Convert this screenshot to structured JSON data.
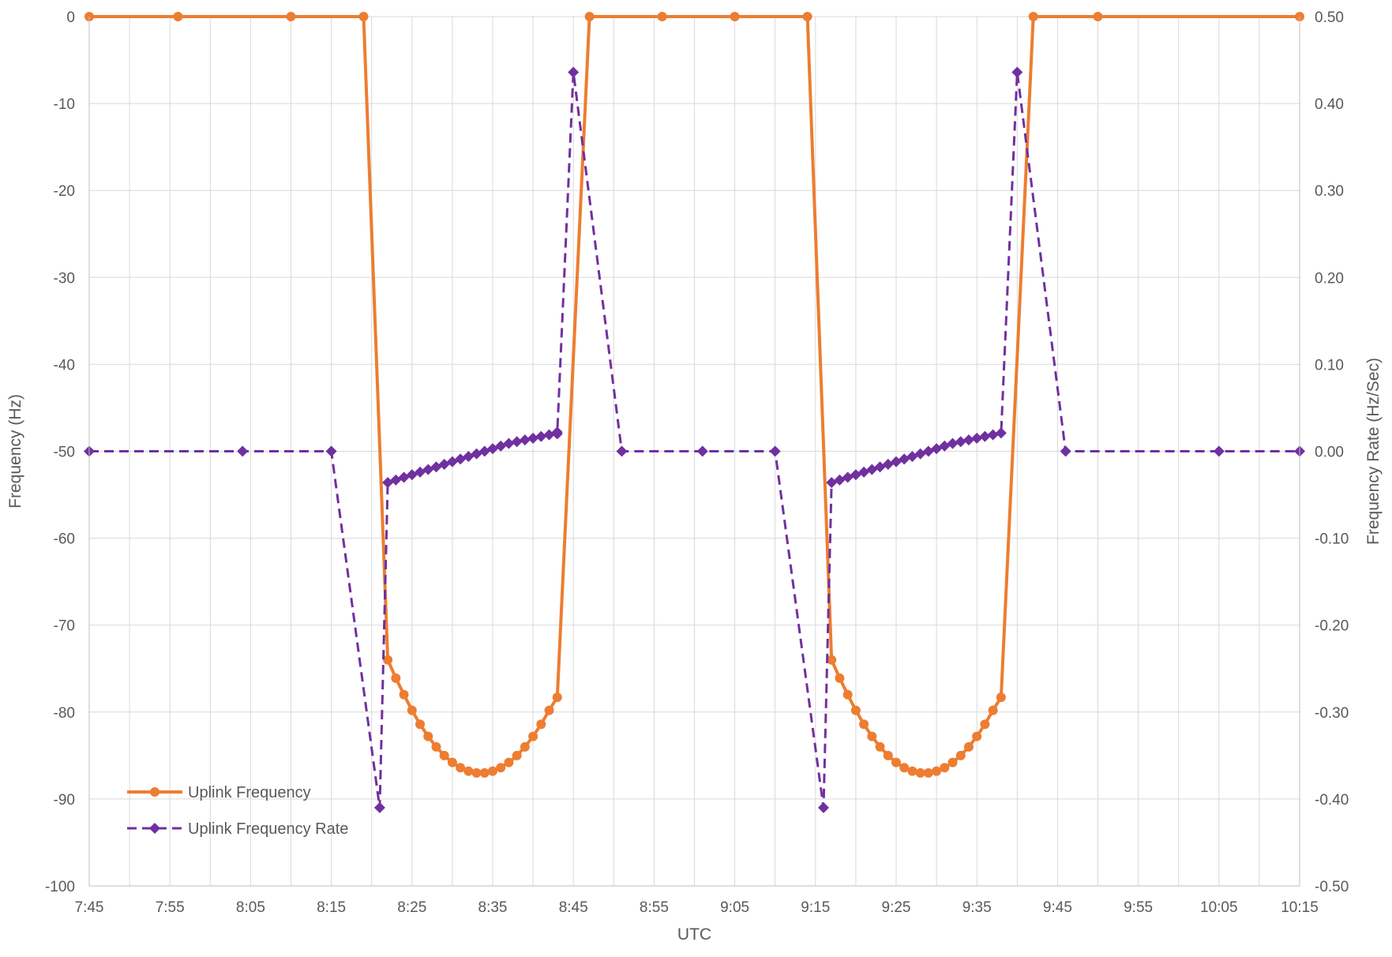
{
  "chart_data": {
    "type": "line",
    "xlabel": "UTC",
    "ylabel_left": "Frequency (Hz)",
    "ylabel_right": "Frequency Rate (Hz/Sec)",
    "xlim": [
      "7:45",
      "10:15"
    ],
    "ylim_left": [
      -100,
      0
    ],
    "ylim_right": [
      -0.5,
      0.5
    ],
    "x_ticks": [
      "7:45",
      "7:55",
      "8:05",
      "8:15",
      "8:25",
      "8:35",
      "8:45",
      "8:55",
      "9:05",
      "9:15",
      "9:25",
      "9:35",
      "9:45",
      "9:55",
      "10:05",
      "10:15"
    ],
    "y_left_ticks": [
      "0",
      "-10",
      "-20",
      "-30",
      "-40",
      "-50",
      "-60",
      "-70",
      "-80",
      "-90",
      "-100"
    ],
    "y_right_ticks": [
      "0.50",
      "0.40",
      "0.30",
      "0.20",
      "0.10",
      "0.00",
      "-0.10",
      "-0.20",
      "-0.30",
      "-0.40",
      "-0.50"
    ],
    "grid": "vertical and horizontal",
    "legend_position": "bottom-left",
    "series": [
      {
        "name": "Uplink Frequency",
        "axis": "left",
        "color": "#ED7D31",
        "line_style": "solid",
        "marker": "circle",
        "points": [
          [
            "7:45",
            0
          ],
          [
            "7:56",
            0
          ],
          [
            "8:10",
            0
          ],
          [
            "8:19",
            0
          ],
          [
            "8:22",
            -74
          ],
          [
            "8:23",
            -76.1
          ],
          [
            "8:24",
            -78
          ],
          [
            "8:25",
            -79.8
          ],
          [
            "8:26",
            -81.4
          ],
          [
            "8:27",
            -82.8
          ],
          [
            "8:28",
            -84
          ],
          [
            "8:29",
            -85
          ],
          [
            "8:30",
            -85.8
          ],
          [
            "8:31",
            -86.4
          ],
          [
            "8:32",
            -86.8
          ],
          [
            "8:33",
            -87
          ],
          [
            "8:34",
            -87
          ],
          [
            "8:35",
            -86.8
          ],
          [
            "8:36",
            -86.4
          ],
          [
            "8:37",
            -85.8
          ],
          [
            "8:38",
            -85
          ],
          [
            "8:39",
            -84
          ],
          [
            "8:40",
            -82.8
          ],
          [
            "8:41",
            -81.4
          ],
          [
            "8:42",
            -79.8
          ],
          [
            "8:43",
            -78.3
          ],
          [
            "8:47",
            0
          ],
          [
            "8:56",
            0
          ],
          [
            "9:05",
            0
          ],
          [
            "9:14",
            0
          ],
          [
            "9:17",
            -74
          ],
          [
            "9:18",
            -76.1
          ],
          [
            "9:19",
            -78
          ],
          [
            "9:20",
            -79.8
          ],
          [
            "9:21",
            -81.4
          ],
          [
            "9:22",
            -82.8
          ],
          [
            "9:23",
            -84
          ],
          [
            "9:24",
            -85
          ],
          [
            "9:25",
            -85.8
          ],
          [
            "9:26",
            -86.4
          ],
          [
            "9:27",
            -86.8
          ],
          [
            "9:28",
            -87
          ],
          [
            "9:29",
            -87
          ],
          [
            "9:30",
            -86.8
          ],
          [
            "9:31",
            -86.4
          ],
          [
            "9:32",
            -85.8
          ],
          [
            "9:33",
            -85
          ],
          [
            "9:34",
            -84
          ],
          [
            "9:35",
            -82.8
          ],
          [
            "9:36",
            -81.4
          ],
          [
            "9:37",
            -79.8
          ],
          [
            "9:38",
            -78.3
          ],
          [
            "9:42",
            0
          ],
          [
            "9:50",
            0
          ],
          [
            "10:15",
            0
          ]
        ]
      },
      {
        "name": "Uplink Frequency Rate",
        "axis": "right",
        "color": "#7030A0",
        "line_style": "dashed",
        "marker": "diamond",
        "points": [
          [
            "7:45",
            0
          ],
          [
            "8:04",
            0
          ],
          [
            "8:15",
            0
          ],
          [
            "8:21",
            -0.41
          ],
          [
            "8:22",
            -0.036
          ],
          [
            "8:23",
            -0.033
          ],
          [
            "8:24",
            -0.03
          ],
          [
            "8:25",
            -0.027
          ],
          [
            "8:26",
            -0.024
          ],
          [
            "8:27",
            -0.021
          ],
          [
            "8:28",
            -0.018
          ],
          [
            "8:29",
            -0.015
          ],
          [
            "8:30",
            -0.012
          ],
          [
            "8:31",
            -0.009
          ],
          [
            "8:32",
            -0.006
          ],
          [
            "8:33",
            -0.003
          ],
          [
            "8:34",
            0
          ],
          [
            "8:35",
            0.003
          ],
          [
            "8:36",
            0.006
          ],
          [
            "8:37",
            0.009
          ],
          [
            "8:38",
            0.011
          ],
          [
            "8:39",
            0.013
          ],
          [
            "8:40",
            0.015
          ],
          [
            "8:41",
            0.017
          ],
          [
            "8:42",
            0.019
          ],
          [
            "8:43",
            0.02
          ],
          [
            "8:43",
            0.022
          ],
          [
            "8:45",
            0.436
          ],
          [
            "8:51",
            0
          ],
          [
            "9:01",
            0
          ],
          [
            "9:10",
            0
          ],
          [
            "9:16",
            -0.41
          ],
          [
            "9:17",
            -0.036
          ],
          [
            "9:18",
            -0.033
          ],
          [
            "9:19",
            -0.03
          ],
          [
            "9:20",
            -0.027
          ],
          [
            "9:21",
            -0.024
          ],
          [
            "9:22",
            -0.021
          ],
          [
            "9:23",
            -0.018
          ],
          [
            "9:24",
            -0.015
          ],
          [
            "9:25",
            -0.012
          ],
          [
            "9:26",
            -0.009
          ],
          [
            "9:27",
            -0.006
          ],
          [
            "9:28",
            -0.003
          ],
          [
            "9:29",
            0
          ],
          [
            "9:30",
            0.003
          ],
          [
            "9:31",
            0.006
          ],
          [
            "9:32",
            0.009
          ],
          [
            "9:33",
            0.011
          ],
          [
            "9:34",
            0.013
          ],
          [
            "9:35",
            0.015
          ],
          [
            "9:36",
            0.017
          ],
          [
            "9:37",
            0.019
          ],
          [
            "9:38",
            0.021
          ],
          [
            "9:40",
            0.436
          ],
          [
            "9:46",
            0
          ],
          [
            "10:05",
            0
          ],
          [
            "10:15",
            0
          ]
        ]
      }
    ]
  }
}
